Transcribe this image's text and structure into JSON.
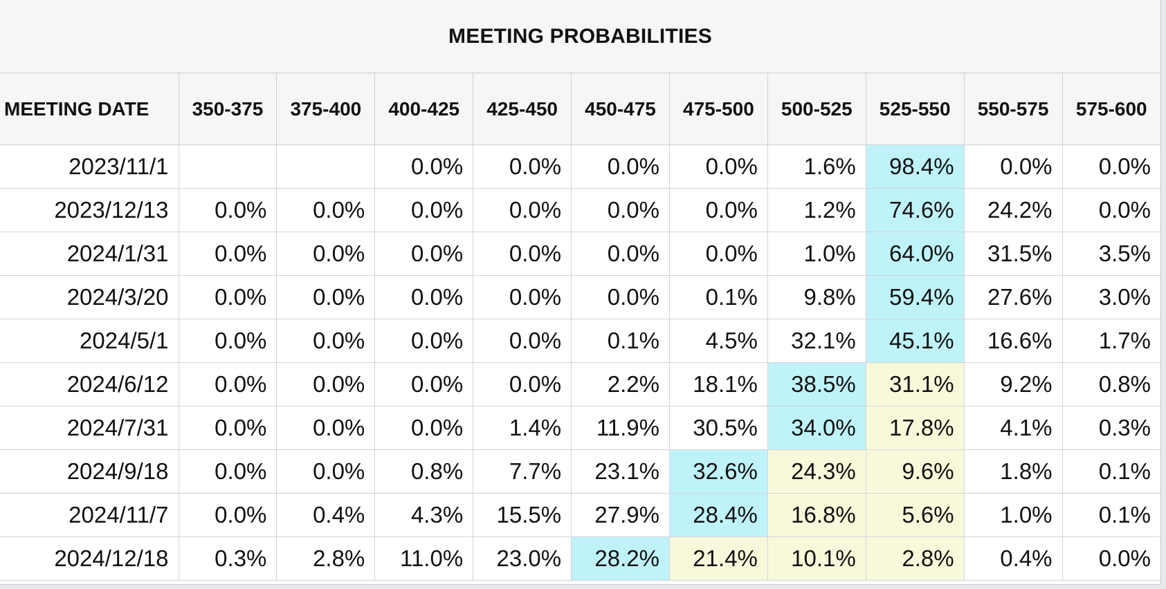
{
  "title": "MEETING PROBABILITIES",
  "columns": [
    "MEETING DATE",
    "350-375",
    "375-400",
    "400-425",
    "425-450",
    "450-475",
    "475-500",
    "500-525",
    "525-550",
    "550-575",
    "575-600"
  ],
  "highlight_colors": {
    "blue": "#bff3f9",
    "yellow": "#f8f9da"
  },
  "rows": [
    {
      "date": "2023/11/1",
      "cells": [
        {
          "v": ""
        },
        {
          "v": ""
        },
        {
          "v": "0.0%"
        },
        {
          "v": "0.0%"
        },
        {
          "v": "0.0%"
        },
        {
          "v": "0.0%"
        },
        {
          "v": "1.6%"
        },
        {
          "v": "98.4%",
          "hl": "blue"
        },
        {
          "v": "0.0%"
        },
        {
          "v": "0.0%"
        }
      ]
    },
    {
      "date": "2023/12/13",
      "cells": [
        {
          "v": "0.0%"
        },
        {
          "v": "0.0%"
        },
        {
          "v": "0.0%"
        },
        {
          "v": "0.0%"
        },
        {
          "v": "0.0%"
        },
        {
          "v": "0.0%"
        },
        {
          "v": "1.2%"
        },
        {
          "v": "74.6%",
          "hl": "blue"
        },
        {
          "v": "24.2%"
        },
        {
          "v": "0.0%"
        }
      ]
    },
    {
      "date": "2024/1/31",
      "cells": [
        {
          "v": "0.0%"
        },
        {
          "v": "0.0%"
        },
        {
          "v": "0.0%"
        },
        {
          "v": "0.0%"
        },
        {
          "v": "0.0%"
        },
        {
          "v": "0.0%"
        },
        {
          "v": "1.0%"
        },
        {
          "v": "64.0%",
          "hl": "blue"
        },
        {
          "v": "31.5%"
        },
        {
          "v": "3.5%"
        }
      ]
    },
    {
      "date": "2024/3/20",
      "cells": [
        {
          "v": "0.0%"
        },
        {
          "v": "0.0%"
        },
        {
          "v": "0.0%"
        },
        {
          "v": "0.0%"
        },
        {
          "v": "0.0%"
        },
        {
          "v": "0.1%"
        },
        {
          "v": "9.8%"
        },
        {
          "v": "59.4%",
          "hl": "blue"
        },
        {
          "v": "27.6%"
        },
        {
          "v": "3.0%"
        }
      ]
    },
    {
      "date": "2024/5/1",
      "cells": [
        {
          "v": "0.0%"
        },
        {
          "v": "0.0%"
        },
        {
          "v": "0.0%"
        },
        {
          "v": "0.0%"
        },
        {
          "v": "0.1%"
        },
        {
          "v": "4.5%"
        },
        {
          "v": "32.1%"
        },
        {
          "v": "45.1%",
          "hl": "blue"
        },
        {
          "v": "16.6%"
        },
        {
          "v": "1.7%"
        }
      ]
    },
    {
      "date": "2024/6/12",
      "cells": [
        {
          "v": "0.0%"
        },
        {
          "v": "0.0%"
        },
        {
          "v": "0.0%"
        },
        {
          "v": "0.0%"
        },
        {
          "v": "2.2%"
        },
        {
          "v": "18.1%"
        },
        {
          "v": "38.5%",
          "hl": "blue"
        },
        {
          "v": "31.1%",
          "hl": "yellow"
        },
        {
          "v": "9.2%"
        },
        {
          "v": "0.8%"
        }
      ]
    },
    {
      "date": "2024/7/31",
      "cells": [
        {
          "v": "0.0%"
        },
        {
          "v": "0.0%"
        },
        {
          "v": "0.0%"
        },
        {
          "v": "1.4%"
        },
        {
          "v": "11.9%"
        },
        {
          "v": "30.5%"
        },
        {
          "v": "34.0%",
          "hl": "blue"
        },
        {
          "v": "17.8%",
          "hl": "yellow"
        },
        {
          "v": "4.1%"
        },
        {
          "v": "0.3%"
        }
      ]
    },
    {
      "date": "2024/9/18",
      "cells": [
        {
          "v": "0.0%"
        },
        {
          "v": "0.0%"
        },
        {
          "v": "0.8%"
        },
        {
          "v": "7.7%"
        },
        {
          "v": "23.1%"
        },
        {
          "v": "32.6%",
          "hl": "blue"
        },
        {
          "v": "24.3%",
          "hl": "yellow"
        },
        {
          "v": "9.6%",
          "hl": "yellow"
        },
        {
          "v": "1.8%"
        },
        {
          "v": "0.1%"
        }
      ]
    },
    {
      "date": "2024/11/7",
      "cells": [
        {
          "v": "0.0%"
        },
        {
          "v": "0.4%"
        },
        {
          "v": "4.3%"
        },
        {
          "v": "15.5%"
        },
        {
          "v": "27.9%"
        },
        {
          "v": "28.4%",
          "hl": "blue"
        },
        {
          "v": "16.8%",
          "hl": "yellow"
        },
        {
          "v": "5.6%",
          "hl": "yellow"
        },
        {
          "v": "1.0%"
        },
        {
          "v": "0.1%"
        }
      ]
    },
    {
      "date": "2024/12/18",
      "cells": [
        {
          "v": "0.3%"
        },
        {
          "v": "2.8%"
        },
        {
          "v": "11.0%"
        },
        {
          "v": "23.0%"
        },
        {
          "v": "28.2%",
          "hl": "blue"
        },
        {
          "v": "21.4%",
          "hl": "yellow"
        },
        {
          "v": "10.1%",
          "hl": "yellow"
        },
        {
          "v": "2.8%",
          "hl": "yellow"
        },
        {
          "v": "0.4%"
        },
        {
          "v": "0.0%"
        }
      ]
    }
  ]
}
